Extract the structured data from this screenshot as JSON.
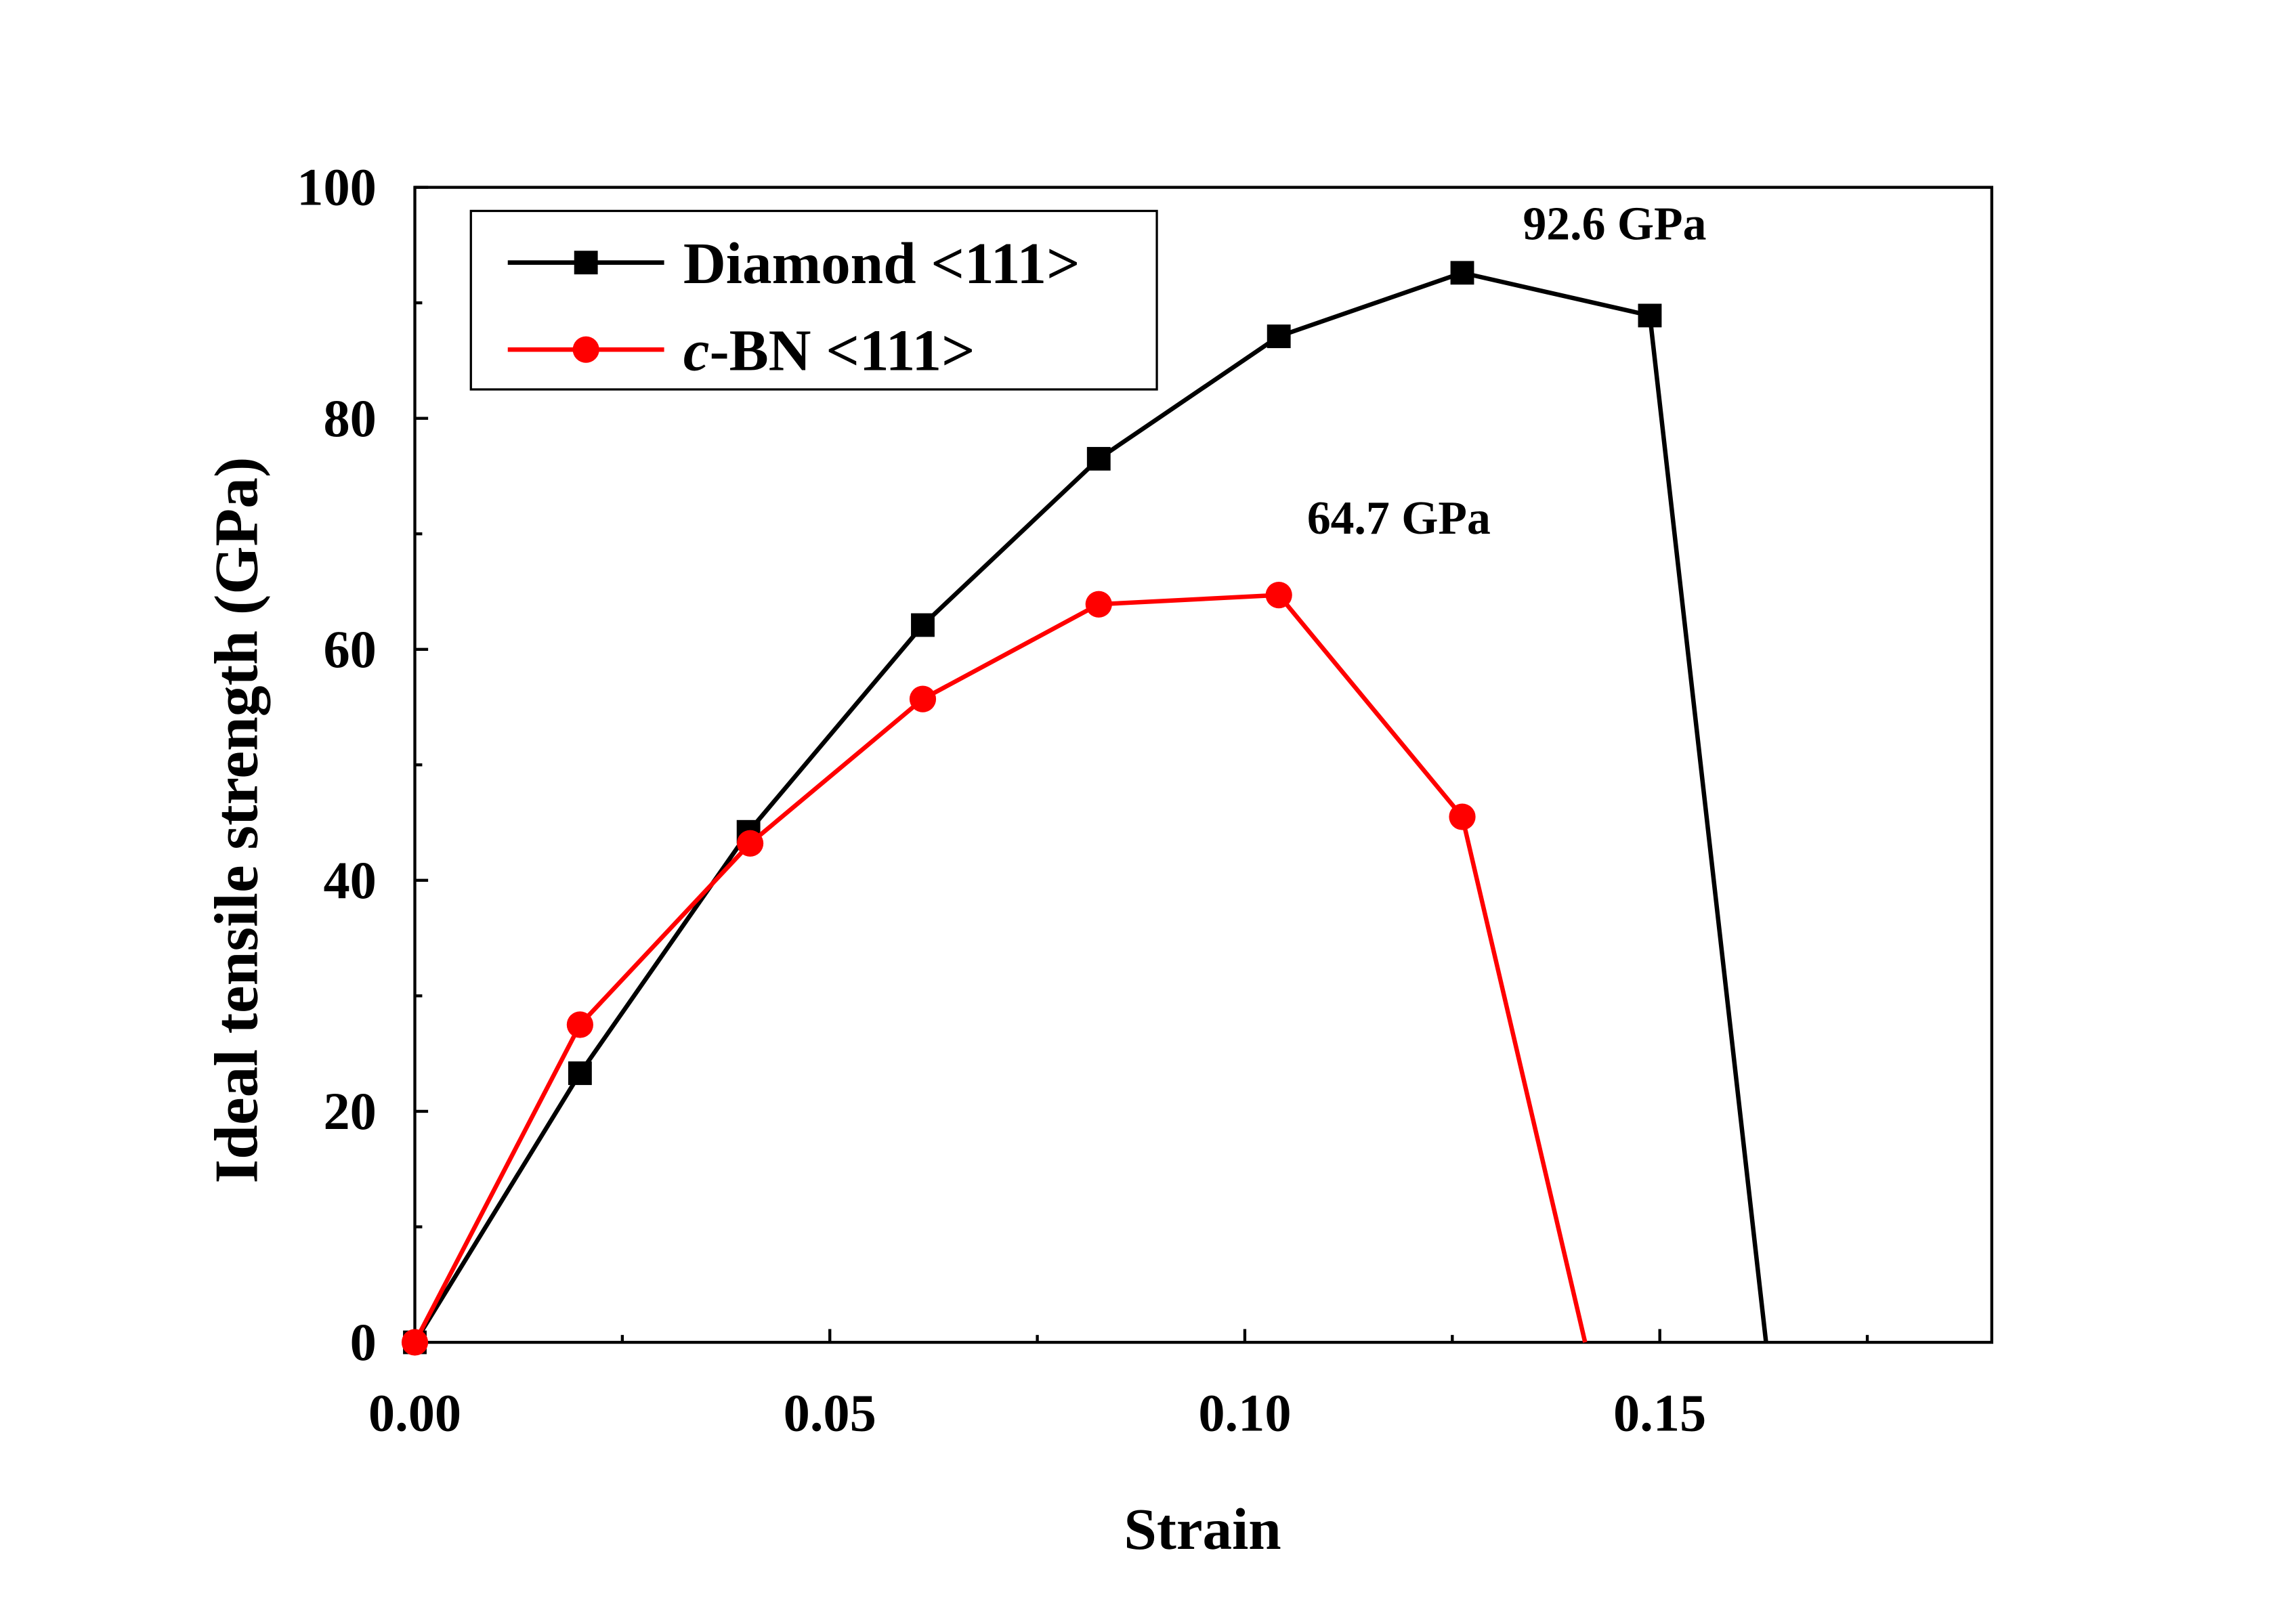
{
  "chart_data": {
    "type": "line",
    "title": "",
    "xlabel": "Strain",
    "ylabel": "Ideal tensile strength (GPa)",
    "xlim": [
      0,
      0.19
    ],
    "ylim": [
      0,
      100
    ],
    "xticks": [
      0.0,
      0.05,
      0.1,
      0.15
    ],
    "xtick_labels": [
      "0.00",
      "0.05",
      "0.10",
      "0.15"
    ],
    "yticks": [
      0,
      20,
      40,
      60,
      80,
      100
    ],
    "ytick_labels": [
      "0",
      "20",
      "40",
      "60",
      "80",
      "100"
    ],
    "grid": false,
    "legend_position": "top-left",
    "series": [
      {
        "name": "Diamond <111>",
        "color": "#000000",
        "marker": "square",
        "x": [
          0.0,
          0.0199,
          0.0402,
          0.0612,
          0.0824,
          0.1041,
          0.1262,
          0.1488,
          0.1628
        ],
        "y": [
          0.0,
          23.3,
          44.2,
          62.1,
          76.5,
          87.1,
          92.6,
          88.9,
          0.0
        ],
        "marker_count": 8
      },
      {
        "name": "c-BN <111>",
        "color": "#ff0000",
        "marker": "circle",
        "x": [
          0.0,
          0.0199,
          0.0404,
          0.0612,
          0.0824,
          0.1041,
          0.1262,
          0.141
        ],
        "y": [
          0.0,
          27.5,
          43.2,
          55.7,
          63.9,
          64.7,
          45.5,
          0.0
        ],
        "marker_count": 7
      }
    ],
    "annotations": [
      {
        "text": "92.6 GPa",
        "x": 0.1335,
        "y": 95.5
      },
      {
        "text": "64.7 GPa",
        "x": 0.1075,
        "y": 70.0
      }
    ]
  }
}
